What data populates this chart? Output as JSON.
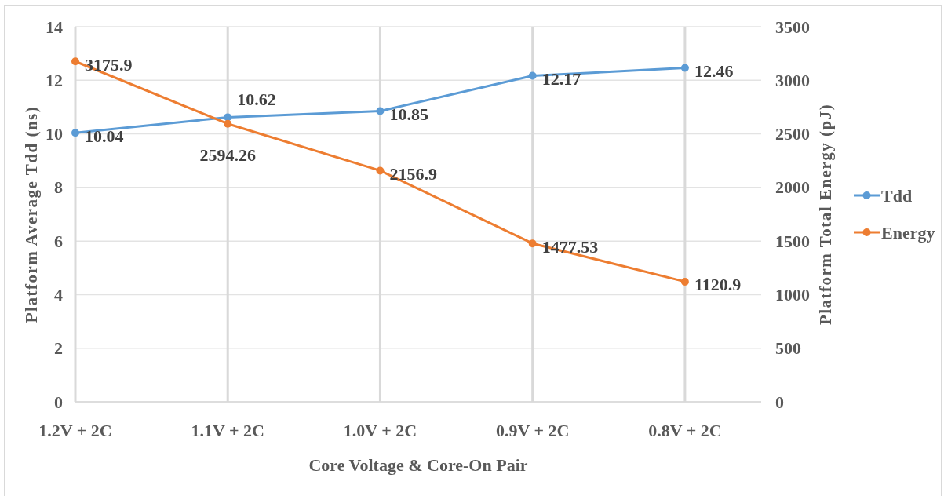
{
  "chart_data": {
    "type": "line",
    "categories": [
      "1.2V + 2C",
      "1.1V + 2C",
      "1.0V + 2C",
      "0.9V + 2C",
      "0.8V + 2C"
    ],
    "xlabel": "Core Voltage & Core-On Pair",
    "ylabel": "Platform Average Tdd (ns)",
    "y2label": "Platform Total Energy (pJ)",
    "series": [
      {
        "name": "Tdd",
        "color": "#5b9bd5",
        "values": [
          10.04,
          10.62,
          10.85,
          12.17,
          12.46
        ]
      },
      {
        "name": "Energy",
        "color": "#ed7d31",
        "axis": "y2",
        "values": [
          3175.9,
          2594.26,
          2156.9,
          1477.53,
          1120.9
        ]
      }
    ],
    "ylim": [
      0,
      14
    ],
    "yticks": [
      0,
      2,
      4,
      6,
      8,
      10,
      12,
      14
    ],
    "y2lim": [
      0,
      3500
    ],
    "y2ticks": [
      0,
      500,
      1000,
      1500,
      2000,
      2500,
      3000,
      3500
    ],
    "grid": true,
    "legend": "right",
    "marker": "circle",
    "data_labels": true
  }
}
